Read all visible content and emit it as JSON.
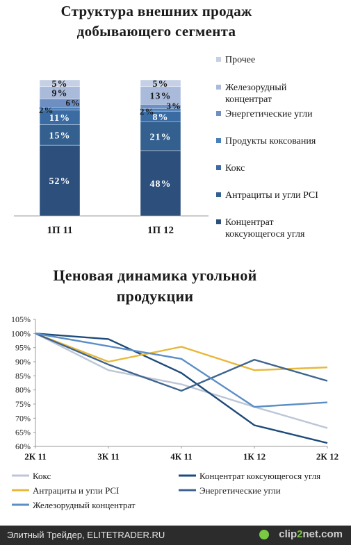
{
  "chart_data": [
    {
      "type": "bar",
      "title_line1": "Структура внешних продаж",
      "title_line2": "добывающего сегмента",
      "categories": [
        "1П 11",
        "1П 12"
      ],
      "series": [
        {
          "name": "Концентрат коксующегося угля",
          "values": [
            52,
            48
          ],
          "color": "#2c4f7c"
        },
        {
          "name": "Антрациты и угли PCI",
          "values": [
            15,
            21
          ],
          "color": "#34608f"
        },
        {
          "name": "Кокс",
          "values": [
            11,
            8
          ],
          "color": "#3a6ca3"
        },
        {
          "name": "Продукты коксования",
          "values": [
            2,
            2
          ],
          "color": "#4a7fba"
        },
        {
          "name": "Энергетические угли",
          "values": [
            6,
            3
          ],
          "color": "#6f8fc3"
        },
        {
          "name": "Железорудный концентрат",
          "values": [
            9,
            13
          ],
          "color": "#a9badb"
        },
        {
          "name": "Прочее",
          "values": [
            5,
            5
          ],
          "color": "#c5d0e6"
        }
      ],
      "ylim": [
        0,
        100
      ],
      "legend_position": "right"
    },
    {
      "type": "line",
      "title_line1": "Ценовая динамика угольной",
      "title_line2": "продукции",
      "x": [
        "2К 11",
        "3К 11",
        "4К 11",
        "1К 12",
        "2К 12"
      ],
      "yticks": [
        "105%",
        "100%",
        "95%",
        "90%",
        "85%",
        "80%",
        "75%",
        "70%",
        "65%",
        "60%"
      ],
      "ylim": [
        60,
        105
      ],
      "grid": false,
      "legend_position": "bottom",
      "series": [
        {
          "name": "Кокс",
          "color": "#bcc6d6",
          "values": [
            100,
            87,
            82,
            74,
            66.5
          ]
        },
        {
          "name": "Концентрат коксующегося угля",
          "color": "#1d4b79",
          "values": [
            100,
            98,
            86,
            67.5,
            61.2
          ]
        },
        {
          "name": "Антрациты и угли PCI",
          "color": "#e8b83a",
          "values": [
            100,
            90,
            95.3,
            87,
            88
          ]
        },
        {
          "name": "Энергетические угли",
          "color": "#3d648f",
          "values": [
            100,
            89,
            79.7,
            90.7,
            83.2
          ]
        },
        {
          "name": "Железорудный концентрат",
          "color": "#5b8ec6",
          "values": [
            100,
            95.5,
            91,
            74,
            75.6
          ]
        }
      ]
    }
  ],
  "footer": {
    "left_text": "Элитный Трейдер, ELITETRADER.RU",
    "brand_main": "clip",
    "brand_accent": "2",
    "brand_tail": "net.com"
  }
}
